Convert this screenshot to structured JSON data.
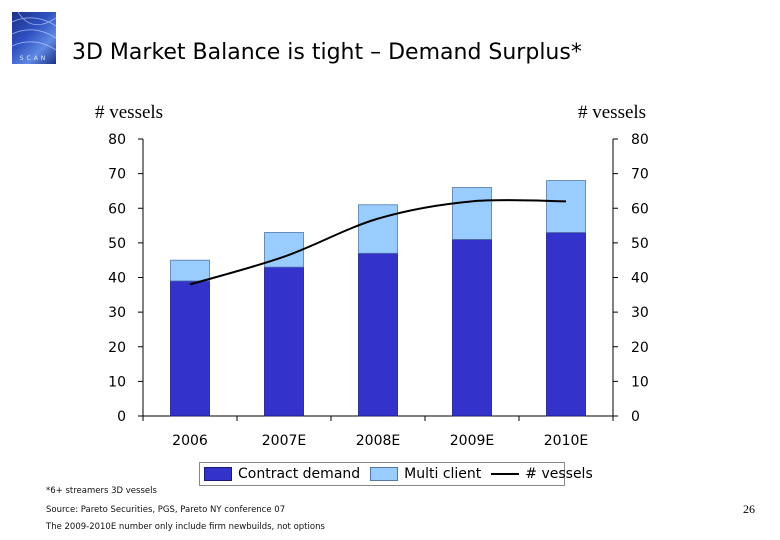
{
  "slide": {
    "title": "3D Market Balance is tight – Demand Surplus*",
    "logo_text": "SCAN",
    "page_number": "26"
  },
  "notes": {
    "footnote": "*6+ streamers 3D vessels",
    "source": "Source: Pareto Securities, PGS, Pareto NY conference 07",
    "disclaimer": "The 2009-2010E number only include firm newbuilds, not options"
  },
  "chart_data": {
    "type": "bar",
    "stacked": true,
    "categories": [
      "2006",
      "2007E",
      "2008E",
      "2009E",
      "2010E"
    ],
    "series": [
      {
        "name": "Contract demand",
        "values": [
          39,
          43,
          47,
          51,
          53
        ],
        "color": "#3333cc"
      },
      {
        "name": "Multi client",
        "values": [
          6,
          10,
          14,
          15,
          15
        ],
        "color": "#99ccff"
      }
    ],
    "line_series": {
      "name": "# vessels",
      "values": [
        38,
        46,
        57,
        62,
        62
      ],
      "color": "#000000"
    },
    "ylabel_left": "# vessels",
    "ylabel_right": "# vessels",
    "ylim": [
      0,
      80
    ],
    "yticks": [
      0,
      10,
      20,
      30,
      40,
      50,
      60,
      70,
      80
    ],
    "grid": false,
    "legend": "bottom"
  }
}
